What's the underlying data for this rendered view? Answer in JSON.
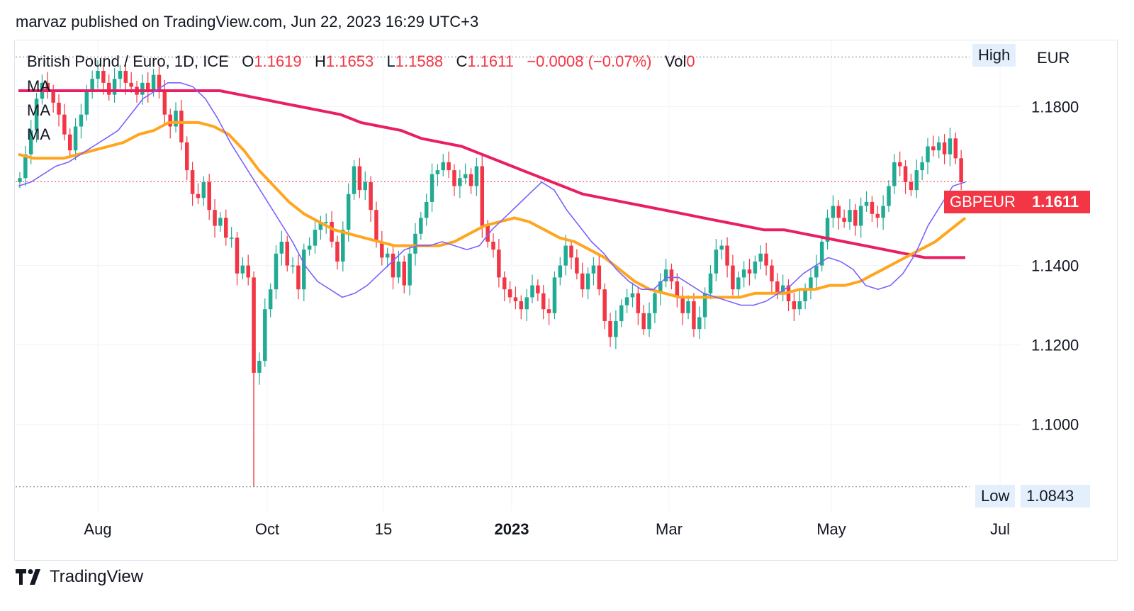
{
  "header": {
    "publish_text": "marvaz published on TradingView.com, Jun 22, 2023 16:29 UTC+3"
  },
  "legend": {
    "symbol": "British Pound / Euro, 1D, ICE",
    "o_label": "O",
    "o_value": "1.1619",
    "h_label": "H",
    "h_value": "1.1653",
    "l_label": "L",
    "l_value": "1.1588",
    "c_label": "C",
    "c_value": "1.1611",
    "change": "−0.0008 (−0.07%)",
    "vol_label": "Vol",
    "vol_value": "0",
    "ma_labels": [
      "MA",
      "MA",
      "MA"
    ]
  },
  "price_axis": {
    "currency": "EUR",
    "high_label": "High",
    "low_label": "Low",
    "low_value": "1.0843"
  },
  "last_price": {
    "symbol_tag": "GBPEUR",
    "value": "1.1611"
  },
  "footer": {
    "brand": "TradingView"
  },
  "colors": {
    "up": "#22ab94",
    "down": "#f23645",
    "ma_short": "#7b61ff",
    "ma_mid": "#ffa51f",
    "ma_long": "#e91e63"
  },
  "chart_data": {
    "type": "candlestick",
    "title": "British Pound / Euro, 1D, ICE",
    "y_ticks": [
      1.18,
      1.14,
      1.12,
      1.1
    ],
    "y_tick_labels": [
      "1.1800",
      "1.1400",
      "1.1200",
      "1.1000"
    ],
    "ylim": [
      1.0805,
      1.1965
    ],
    "x_ticks": [
      "Aug",
      "Oct",
      "15",
      "2023",
      "Mar",
      "May",
      "Jul"
    ],
    "high_value": 1.1925,
    "low_value": 1.0843,
    "last_close": 1.1611,
    "closes": [
      1.162,
      1.168,
      1.174,
      1.182,
      1.186,
      1.184,
      1.181,
      1.178,
      1.173,
      1.169,
      1.175,
      1.178,
      1.184,
      1.187,
      1.189,
      1.186,
      1.183,
      1.187,
      1.189,
      1.186,
      1.185,
      1.183,
      1.186,
      1.184,
      1.188,
      1.184,
      1.178,
      1.175,
      1.179,
      1.171,
      1.164,
      1.158,
      1.157,
      1.161,
      1.154,
      1.15,
      1.152,
      1.147,
      1.147,
      1.138,
      1.14,
      1.137,
      1.113,
      1.116,
      1.129,
      1.134,
      1.143,
      1.146,
      1.14,
      1.14,
      1.134,
      1.144,
      1.145,
      1.149,
      1.151,
      1.151,
      1.146,
      1.141,
      1.149,
      1.158,
      1.165,
      1.159,
      1.161,
      1.154,
      1.146,
      1.142,
      1.143,
      1.137,
      1.141,
      1.135,
      1.143,
      1.148,
      1.152,
      1.156,
      1.163,
      1.164,
      1.166,
      1.164,
      1.16,
      1.162,
      1.163,
      1.16,
      1.165,
      1.15,
      1.146,
      1.144,
      1.137,
      1.134,
      1.132,
      1.131,
      1.129,
      1.132,
      1.135,
      1.133,
      1.129,
      1.128,
      1.137,
      1.14,
      1.145,
      1.142,
      1.138,
      1.134,
      1.138,
      1.14,
      1.134,
      1.126,
      1.122,
      1.126,
      1.13,
      1.132,
      1.133,
      1.128,
      1.124,
      1.128,
      1.133,
      1.136,
      1.139,
      1.136,
      1.132,
      1.128,
      1.131,
      1.124,
      1.127,
      1.133,
      1.138,
      1.144,
      1.145,
      1.14,
      1.134,
      1.137,
      1.139,
      1.138,
      1.141,
      1.143,
      1.14,
      1.136,
      1.133,
      1.135,
      1.131,
      1.129,
      1.131,
      1.134,
      1.137,
      1.14,
      1.146,
      1.152,
      1.155,
      1.152,
      1.151,
      1.154,
      1.15,
      1.155,
      1.156,
      1.153,
      1.152,
      1.155,
      1.16,
      1.166,
      1.165,
      1.161,
      1.159,
      1.164,
      1.166,
      1.17,
      1.169,
      1.171,
      1.168,
      1.172,
      1.167,
      1.161
    ]
  },
  "moving_averages": {
    "short": [
      1.16,
      1.161,
      1.163,
      1.165,
      1.166,
      1.168,
      1.17,
      1.172,
      1.174,
      1.178,
      1.182,
      1.184,
      1.186,
      1.186,
      1.185,
      1.182,
      1.177,
      1.171,
      1.166,
      1.161,
      1.156,
      1.151,
      1.146,
      1.14,
      1.136,
      1.134,
      1.132,
      1.133,
      1.135,
      1.138,
      1.141,
      1.144,
      1.145,
      1.145,
      1.146,
      1.145,
      1.144,
      1.145,
      1.149,
      1.152,
      1.155,
      1.158,
      1.161,
      1.159,
      1.154,
      1.15,
      1.146,
      1.143,
      1.139,
      1.136,
      1.134,
      1.134,
      1.137,
      1.137,
      1.135,
      1.133,
      1.132,
      1.131,
      1.13,
      1.13,
      1.131,
      1.133,
      1.135,
      1.138,
      1.14,
      1.142,
      1.141,
      1.139,
      1.135,
      1.134,
      1.135,
      1.138,
      1.143,
      1.15,
      1.155,
      1.16,
      1.161
    ],
    "mid": [
      1.168,
      1.167,
      1.167,
      1.167,
      1.168,
      1.169,
      1.17,
      1.171,
      1.173,
      1.174,
      1.176,
      1.176,
      1.176,
      1.175,
      1.173,
      1.169,
      1.164,
      1.16,
      1.156,
      1.153,
      1.151,
      1.149,
      1.148,
      1.147,
      1.146,
      1.145,
      1.145,
      1.145,
      1.145,
      1.146,
      1.148,
      1.15,
      1.151,
      1.152,
      1.151,
      1.149,
      1.147,
      1.146,
      1.144,
      1.142,
      1.139,
      1.136,
      1.134,
      1.133,
      1.132,
      1.132,
      1.132,
      1.132,
      1.132,
      1.133,
      1.133,
      1.133,
      1.134,
      1.134,
      1.135,
      1.135,
      1.136,
      1.138,
      1.14,
      1.142,
      1.144,
      1.146,
      1.149,
      1.152
    ],
    "long": [
      1.184,
      1.184,
      1.184,
      1.184,
      1.184,
      1.184,
      1.184,
      1.184,
      1.184,
      1.184,
      1.184,
      1.183,
      1.182,
      1.181,
      1.18,
      1.179,
      1.178,
      1.176,
      1.175,
      1.174,
      1.172,
      1.171,
      1.17,
      1.168,
      1.166,
      1.164,
      1.162,
      1.16,
      1.158,
      1.157,
      1.156,
      1.155,
      1.154,
      1.153,
      1.152,
      1.151,
      1.15,
      1.149,
      1.149,
      1.148,
      1.147,
      1.146,
      1.145,
      1.144,
      1.143,
      1.142,
      1.142,
      1.142
    ]
  }
}
